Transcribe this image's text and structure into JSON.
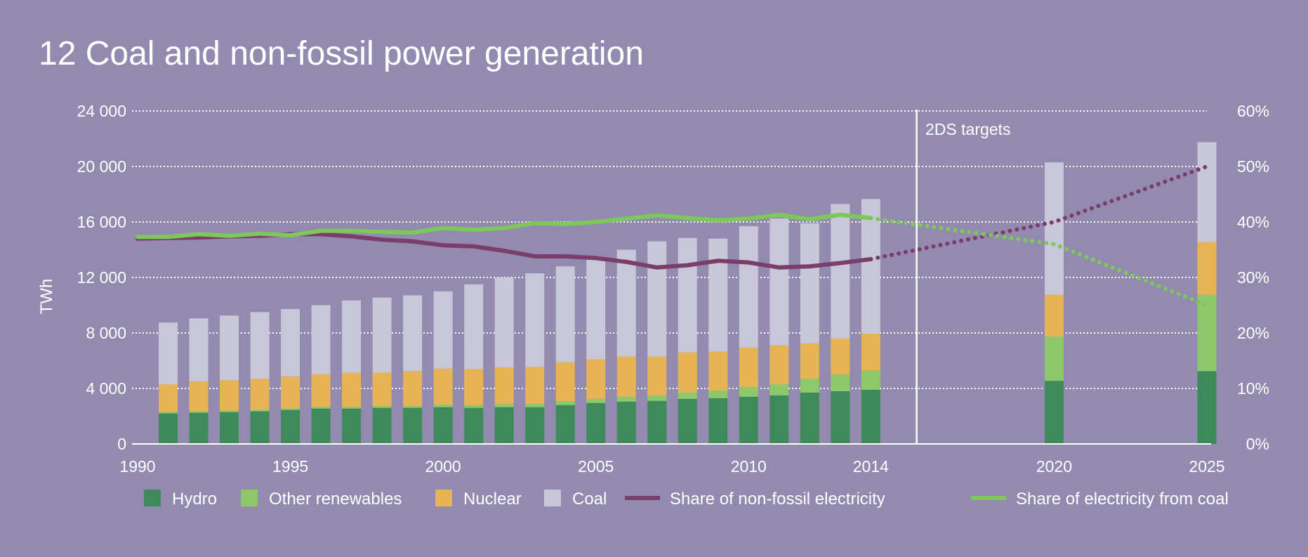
{
  "chart_data": {
    "type": "bar",
    "title": "12 Coal and non-fossil power generation",
    "ylabel": "TWh",
    "ylim": [
      0,
      24000
    ],
    "y2lim": [
      0,
      60
    ],
    "yticks": [
      "0",
      "4 000",
      "8 000",
      "12 000",
      "16 000",
      "20 000",
      "24 000"
    ],
    "y2ticks": [
      "0%",
      "10%",
      "20%",
      "30%",
      "40%",
      "50%",
      "60%"
    ],
    "xlim": [
      1990,
      2025
    ],
    "xticks": [
      "1990",
      "1995",
      "2000",
      "2005",
      "2010",
      "2014",
      "2020",
      "2025"
    ],
    "xtick_values": [
      1990,
      1995,
      2000,
      2005,
      2010,
      2014,
      2020,
      2025
    ],
    "annotation": "2DS targets",
    "annotation_divider_year": 2015.5,
    "grid": true,
    "legend_position": "bottom",
    "stack_order": [
      "Hydro",
      "Other renewables",
      "Nuclear",
      "Coal"
    ],
    "categories": [
      1991,
      1992,
      1993,
      1994,
      1995,
      1996,
      1997,
      1998,
      1999,
      2000,
      2001,
      2002,
      2003,
      2004,
      2005,
      2006,
      2007,
      2008,
      2009,
      2010,
      2011,
      2012,
      2013,
      2014,
      2020,
      2025
    ],
    "series": [
      {
        "name": "Hydro",
        "type": "bar",
        "color": "#3f8a5b",
        "values": [
          2200,
          2250,
          2300,
          2350,
          2450,
          2550,
          2550,
          2600,
          2600,
          2650,
          2600,
          2650,
          2650,
          2800,
          2950,
          3050,
          3100,
          3250,
          3300,
          3400,
          3500,
          3700,
          3800,
          3900,
          4550,
          5250
        ]
      },
      {
        "name": "Other renewables",
        "type": "bar",
        "color": "#8dc96a",
        "values": [
          100,
          100,
          100,
          100,
          120,
          120,
          130,
          140,
          150,
          180,
          200,
          220,
          250,
          280,
          300,
          350,
          400,
          450,
          550,
          700,
          800,
          1000,
          1200,
          1400,
          3200,
          5500
        ]
      },
      {
        "name": "Nuclear",
        "type": "bar",
        "color": "#e6b455",
        "values": [
          2000,
          2150,
          2200,
          2250,
          2300,
          2350,
          2450,
          2400,
          2500,
          2600,
          2600,
          2650,
          2650,
          2800,
          2850,
          2900,
          2800,
          2900,
          2800,
          2850,
          2800,
          2550,
          2600,
          2650,
          3000,
          3800
        ]
      },
      {
        "name": "Coal",
        "type": "bar",
        "color": "#c8c6d9",
        "values": [
          4450,
          4550,
          4650,
          4800,
          4850,
          4980,
          5220,
          5410,
          5460,
          5570,
          6100,
          6480,
          6750,
          6920,
          7200,
          7700,
          8300,
          8250,
          8150,
          8750,
          9150,
          8650,
          9700,
          9700,
          9550,
          7200
        ]
      },
      {
        "name": "Share of non-fossil electricity",
        "type": "line",
        "color": "#7b3d6a",
        "x": [
          1990,
          1991,
          1992,
          1993,
          1994,
          1995,
          1996,
          1997,
          1998,
          1999,
          2000,
          2001,
          2002,
          2003,
          2004,
          2005,
          2006,
          2007,
          2008,
          2009,
          2010,
          2011,
          2012,
          2013,
          2014
        ],
        "values": [
          37.0,
          37.1,
          37.2,
          37.4,
          37.5,
          37.8,
          37.8,
          37.4,
          36.8,
          36.5,
          35.8,
          35.6,
          34.8,
          33.8,
          33.8,
          33.5,
          32.8,
          31.8,
          32.2,
          33.0,
          32.7,
          31.8,
          32.0,
          32.6,
          33.3
        ]
      },
      {
        "name": "Share of non-fossil electricity (target)",
        "type": "dotted",
        "color": "#7b3d6a",
        "x": [
          2014,
          2020,
          2025
        ],
        "values": [
          33.3,
          40.0,
          50.0
        ]
      },
      {
        "name": "Share of electricity from coal",
        "type": "line",
        "color": "#7ec85a",
        "x": [
          1990,
          1991,
          1992,
          1993,
          1994,
          1995,
          1996,
          1997,
          1998,
          1999,
          2000,
          2001,
          2002,
          2003,
          2004,
          2005,
          2006,
          2007,
          2008,
          2009,
          2010,
          2011,
          2012,
          2013,
          2014
        ],
        "values": [
          37.3,
          37.3,
          37.8,
          37.5,
          37.9,
          37.6,
          38.4,
          38.4,
          38.2,
          38.1,
          38.9,
          38.6,
          38.9,
          39.8,
          39.6,
          40.0,
          40.6,
          41.2,
          40.7,
          40.3,
          40.6,
          41.3,
          40.5,
          41.3,
          40.7
        ]
      },
      {
        "name": "Share of electricity from coal (target)",
        "type": "dotted",
        "color": "#7ec85a",
        "x": [
          2014,
          2020,
          2025
        ],
        "values": [
          40.7,
          36.0,
          25.0
        ]
      }
    ],
    "legend": [
      {
        "label": "Hydro",
        "kind": "box",
        "color": "#3f8a5b"
      },
      {
        "label": "Other renewables",
        "kind": "box",
        "color": "#8dc96a"
      },
      {
        "label": "Nuclear",
        "kind": "box",
        "color": "#e6b455"
      },
      {
        "label": "Coal",
        "kind": "box",
        "color": "#c8c6d9"
      },
      {
        "label": "Share of non-fossil electricity",
        "kind": "line",
        "color": "#7b3d6a"
      },
      {
        "label": "Share of electricity from coal",
        "kind": "line",
        "color": "#7ec85a"
      }
    ],
    "colors": {
      "background": "#938aaf",
      "text": "#ffffff",
      "grid": "#ffffff"
    }
  }
}
